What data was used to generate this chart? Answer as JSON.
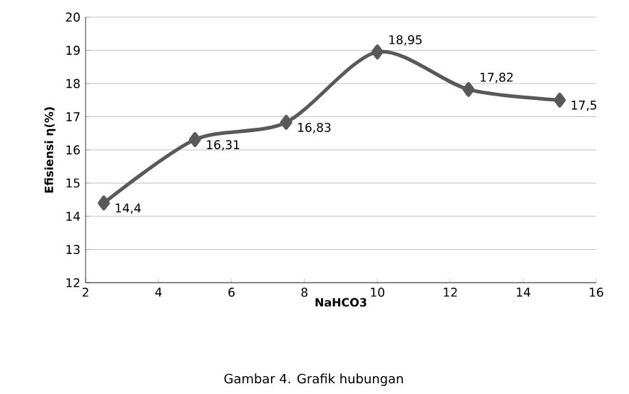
{
  "chart_data": {
    "type": "line",
    "xlabel": "NaHCO3",
    "ylabel": "Efisiensi η(%)",
    "x": [
      2.5,
      5,
      7.5,
      10,
      12.5,
      15
    ],
    "series": [
      {
        "color": "#595959",
        "values": [
          14.4,
          16.31,
          16.83,
          18.95,
          17.82,
          17.5
        ],
        "value_labels": [
          "14,4",
          "16,31",
          "16,83",
          "18,95",
          "17,82",
          "17,5"
        ]
      }
    ],
    "xlim": [
      2,
      16
    ],
    "xticks": [
      2,
      4,
      6,
      8,
      10,
      12,
      14,
      16
    ],
    "ylim": [
      12,
      20
    ],
    "yticks": [
      12,
      13,
      14,
      15,
      16,
      17,
      18,
      19,
      20
    ],
    "grid": "y",
    "marker": "diamond",
    "line_style": "solid",
    "annotations": [
      "Gambar 4. Grafik hubungan"
    ]
  }
}
